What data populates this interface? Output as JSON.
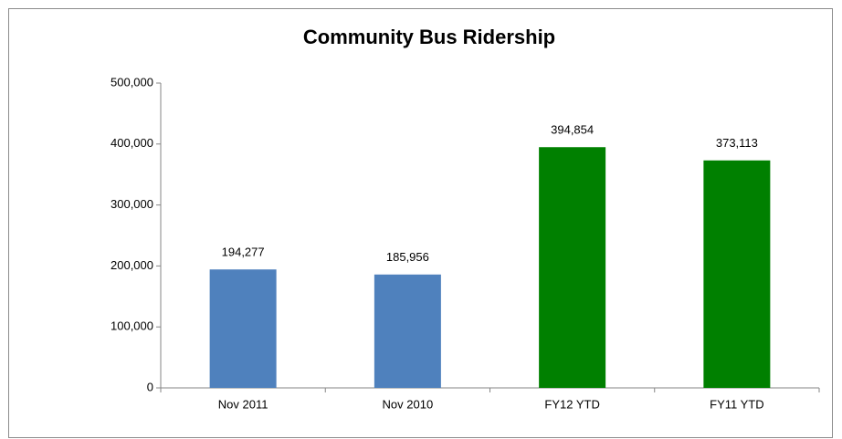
{
  "chart_data": {
    "type": "bar",
    "title": "Community Bus Ridership",
    "categories": [
      "Nov 2011",
      "Nov 2010",
      "FY12 YTD",
      "FY11 YTD"
    ],
    "values": [
      194277,
      185956,
      394854,
      373113
    ],
    "value_labels": [
      "194,277",
      "185,956",
      "394,854",
      "373,113"
    ],
    "colors": [
      "#4f81bd",
      "#4f81bd",
      "#008000",
      "#008000"
    ],
    "ylim": [
      0,
      500000
    ],
    "yticks": [
      0,
      {
        "value": 100000,
        "label": "100,000"
      },
      {
        "value": 200000,
        "label": "200,000"
      },
      {
        "value": 300000,
        "label": "300,000"
      },
      {
        "value": 400000,
        "label": "400,000"
      },
      {
        "value": 500000,
        "label": "500,000"
      }
    ],
    "grid": false
  }
}
